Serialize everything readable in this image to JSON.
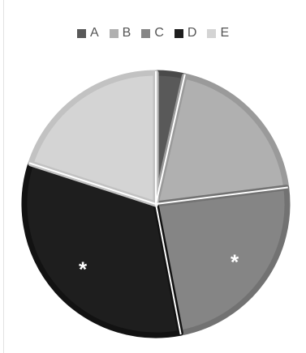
{
  "chart_data": {
    "type": "pie",
    "categories": [
      "A",
      "B",
      "C",
      "D",
      "E"
    ],
    "values": [
      3.5,
      19.5,
      24,
      33,
      20
    ],
    "colors": [
      "#595959",
      "#b0b0b0",
      "#858585",
      "#1e1e1e",
      "#d4d4d4"
    ],
    "edge_colors": [
      "#4a4a4a",
      "#9a9a9a",
      "#727272",
      "#121212",
      "#c2c2c2"
    ],
    "start_angle_deg": 0,
    "direction": "clockwise",
    "legend_position": "top",
    "title": "",
    "annotations": [
      {
        "slice": "C",
        "text": "*"
      },
      {
        "slice": "D",
        "text": "*"
      }
    ]
  }
}
